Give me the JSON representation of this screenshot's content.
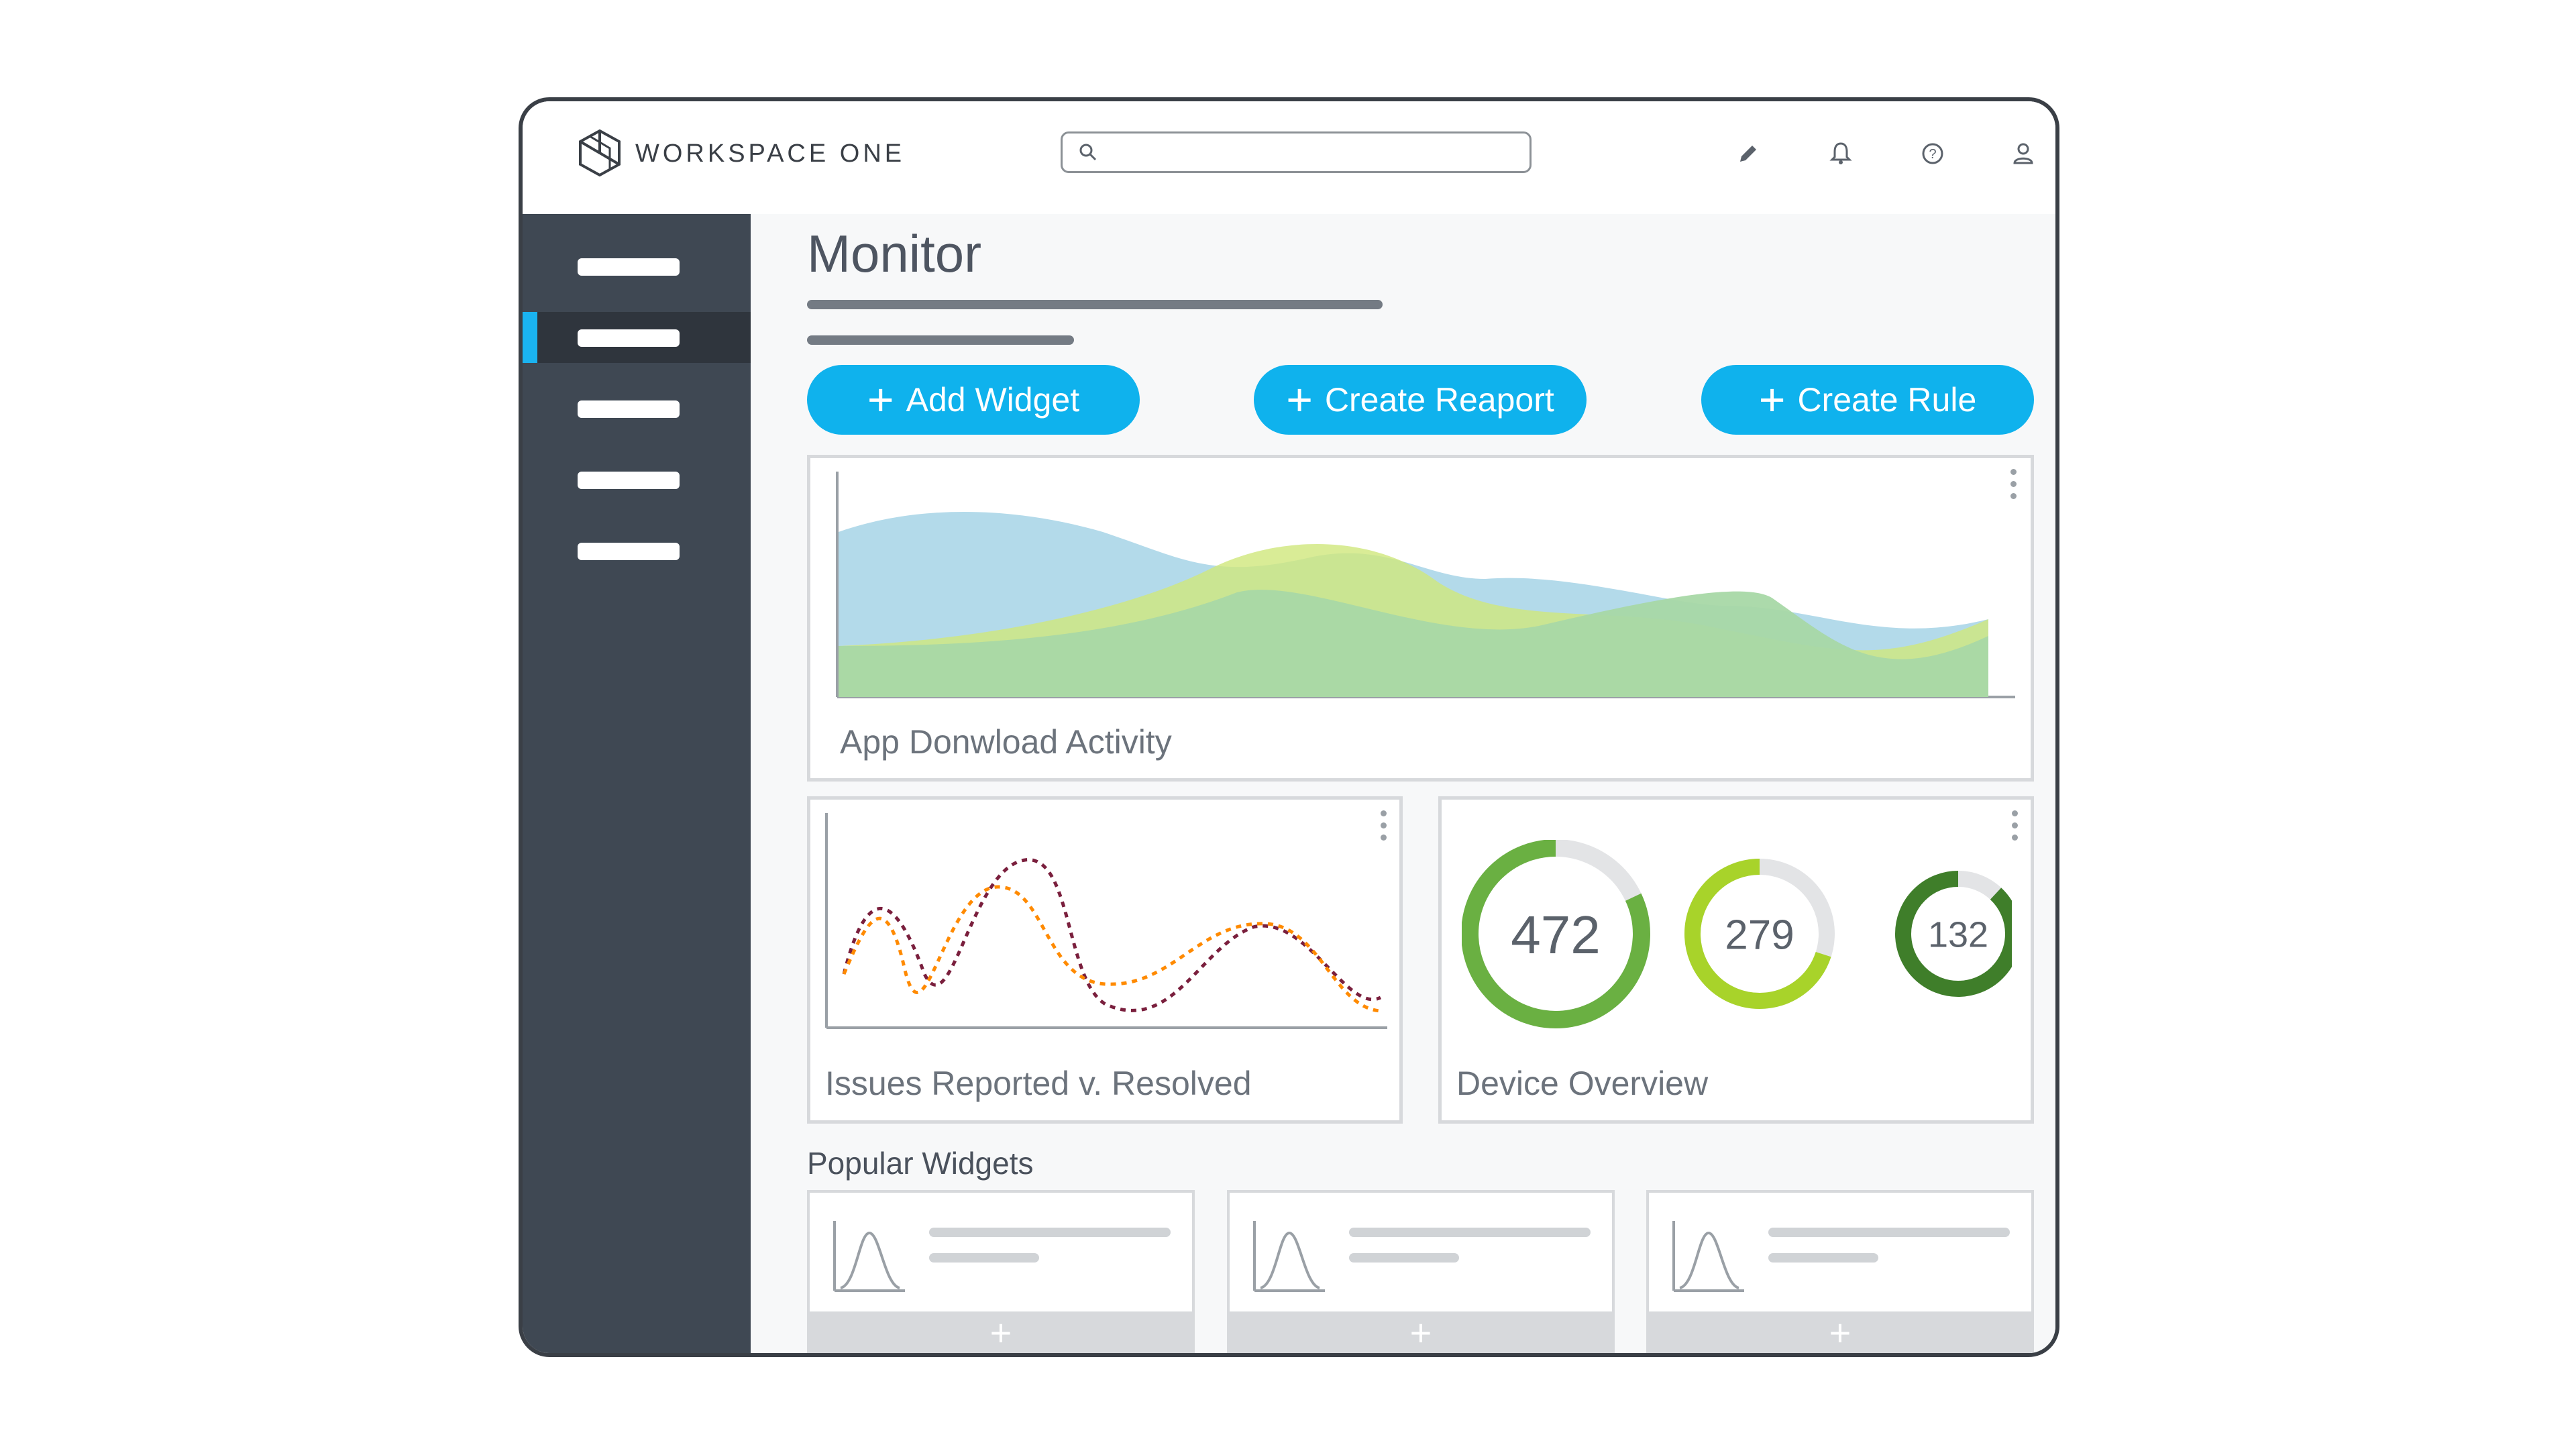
{
  "app": {
    "name": "WORKSPACE ONE"
  },
  "header": {
    "search": {
      "placeholder": ""
    },
    "icons": [
      "pencil-icon",
      "bell-icon",
      "help-icon",
      "user-icon"
    ]
  },
  "sidebar": {
    "active_index": 1,
    "item_count": 5
  },
  "page": {
    "title": "Monitor"
  },
  "actions": {
    "add_widget": "Add Widget",
    "create_report": "Create Reaport",
    "create_rule": "Create Rule"
  },
  "widgets": {
    "app_download": {
      "label": "App Donwload Activity"
    },
    "issues": {
      "label": "Issues Reported v. Resolved"
    },
    "device_overview": {
      "label": "Device Overview",
      "gauges": [
        {
          "value": "472",
          "fraction": 0.82,
          "color": "#6ab042"
        },
        {
          "value": "279",
          "fraction": 0.7,
          "color": "#a8d32a"
        },
        {
          "value": "132",
          "fraction": 0.88,
          "color": "#3f7e2a"
        }
      ]
    }
  },
  "popular_widgets": {
    "title": "Popular Widgets",
    "add_symbol": "+"
  },
  "colors": {
    "accent": "#0fb2ed",
    "sidebar": "#3f4853"
  }
}
